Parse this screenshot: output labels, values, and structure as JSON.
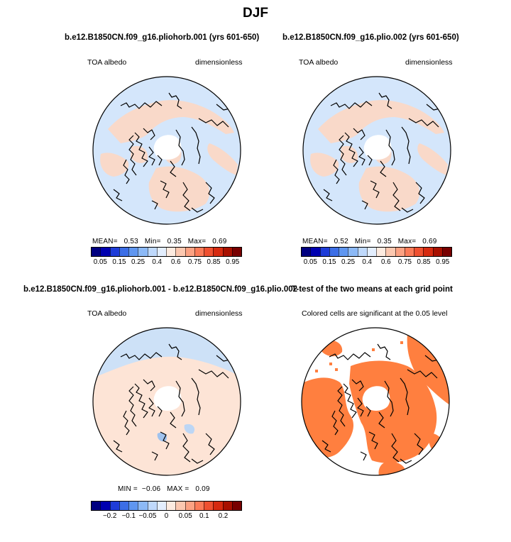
{
  "title": "DJF",
  "panels": [
    {
      "title": "b.e12.B1850CN.f09_g16.pliohorb.001 (yrs 601-650)",
      "left_label": "TOA albedo",
      "right_label": "dimensionless",
      "stats": {
        "mean_label": "MEAN=",
        "mean": "0.53",
        "min_label": "Min=",
        "min": "0.35",
        "max_label": "Max=",
        "max": "0.69"
      }
    },
    {
      "title": "b.e12.B1850CN.f09_g16.plio.002 (yrs 601-650)",
      "left_label": "TOA albedo",
      "right_label": "dimensionless",
      "stats": {
        "mean_label": "MEAN=",
        "mean": "0.52",
        "min_label": "Min=",
        "min": "0.35",
        "max_label": "Max=",
        "max": "0.69"
      }
    },
    {
      "title": "b.e12.B1850CN.f09_g16.pliohorb.001 - b.e12.B1850CN.f09_g16.plio.002",
      "left_label": "TOA albedo",
      "right_label": "dimensionless",
      "stats": {
        "min_label": "MIN =",
        "min": "−0.06",
        "max_label": "MAX =",
        "max": "0.09"
      }
    },
    {
      "title": "T-test of the two means at each grid point",
      "left_label": "Colored cells are significant at the 0.05 level"
    }
  ],
  "chart_data": [
    {
      "type": "heatmap",
      "projection": "north-polar-stereographic",
      "variable": "TOA albedo",
      "units": "dimensionless",
      "case": "b.e12.B1850CN.f09_g16.pliohorb.001 (yrs 601-650)",
      "mean": 0.53,
      "min": 0.35,
      "max": 0.69,
      "colorbar": {
        "ticks": [
          "0.05",
          "0.15",
          "0.25",
          "0.4",
          "0.6",
          "0.75",
          "0.85",
          "0.95"
        ],
        "colors": [
          "#000080",
          "#0000b0",
          "#1e3cd8",
          "#3c6ee6",
          "#5f96f0",
          "#8cb9f6",
          "#bfd9fc",
          "#e3eefe",
          "#fdebe0",
          "#fcc8b0",
          "#fca283",
          "#fb7b58",
          "#ef5030",
          "#d62a10",
          "#a81000",
          "#780000"
        ]
      }
    },
    {
      "type": "heatmap",
      "projection": "north-polar-stereographic",
      "variable": "TOA albedo",
      "units": "dimensionless",
      "case": "b.e12.B1850CN.f09_g16.plio.002 (yrs 601-650)",
      "mean": 0.52,
      "min": 0.35,
      "max": 0.69,
      "colorbar": {
        "ticks": [
          "0.05",
          "0.15",
          "0.25",
          "0.4",
          "0.6",
          "0.75",
          "0.85",
          "0.95"
        ],
        "colors": [
          "#000080",
          "#0000b0",
          "#1e3cd8",
          "#3c6ee6",
          "#5f96f0",
          "#8cb9f6",
          "#bfd9fc",
          "#e3eefe",
          "#fdebe0",
          "#fcc8b0",
          "#fca283",
          "#fb7b58",
          "#ef5030",
          "#d62a10",
          "#a81000",
          "#780000"
        ]
      }
    },
    {
      "type": "heatmap",
      "projection": "north-polar-stereographic",
      "variable": "TOA albedo",
      "units": "dimensionless",
      "case": "b.e12.B1850CN.f09_g16.pliohorb.001 - b.e12.B1850CN.f09_g16.plio.002",
      "min": -0.06,
      "max": 0.09,
      "colorbar": {
        "ticks": [
          "−0.2",
          "−0.1",
          "−0.05",
          "0",
          "0.05",
          "0.1",
          "0.2"
        ],
        "colors": [
          "#000080",
          "#0000b0",
          "#1e3cd8",
          "#3c6ee6",
          "#5f96f0",
          "#8cb9f6",
          "#bfd9fc",
          "#e3eefe",
          "#fdebe0",
          "#fcc8b0",
          "#fca283",
          "#fb7b58",
          "#ef5030",
          "#d62a10",
          "#a81000",
          "#780000"
        ]
      }
    },
    {
      "type": "heatmap",
      "projection": "north-polar-stereographic",
      "description_text": "Colored cells are significant at the 0.05 level",
      "significance_level": 0.05,
      "significant_color": "#ff7f3f"
    }
  ],
  "colors": {
    "ocean_blue": "#d4e6fb",
    "land_peach": "#f9d9c9",
    "pole_white": "#ffffff",
    "diff_positive": "#fde4d6",
    "diff_negative": "#cde1f7",
    "significant": "#ff7f3f"
  }
}
